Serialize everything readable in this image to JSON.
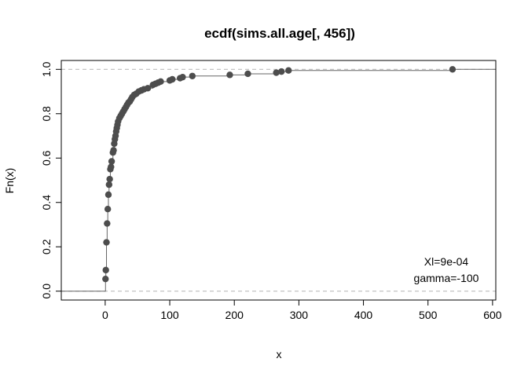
{
  "chart_data": {
    "type": "scatter",
    "title": "ecdf(sims.all.age[, 456])",
    "xlabel": "x",
    "ylabel": "Fn(x)",
    "xlim": [
      -68,
      605
    ],
    "ylim": [
      -0.04,
      1.04
    ],
    "xticks": [
      0,
      100,
      200,
      300,
      400,
      500,
      600
    ],
    "yticks": [
      0.0,
      0.2,
      0.4,
      0.6,
      0.8,
      1.0
    ],
    "xtick_labels": [
      "0",
      "100",
      "200",
      "300",
      "400",
      "500",
      "600"
    ],
    "ytick_labels": [
      "0.0",
      "0.2",
      "0.4",
      "0.6",
      "0.8",
      "1.0"
    ],
    "reference_lines": [
      0,
      1
    ],
    "point_color": "#4d4d4d",
    "annotations": [
      "Xl=9e-04",
      "gamma=-100"
    ],
    "points": [
      [
        0.5,
        0.055
      ],
      [
        1,
        0.095
      ],
      [
        2,
        0.22
      ],
      [
        3,
        0.305
      ],
      [
        4,
        0.37
      ],
      [
        5,
        0.435
      ],
      [
        6,
        0.48
      ],
      [
        7,
        0.505
      ],
      [
        8,
        0.55
      ],
      [
        9,
        0.56
      ],
      [
        10,
        0.585
      ],
      [
        12,
        0.625
      ],
      [
        13,
        0.635
      ],
      [
        14,
        0.665
      ],
      [
        15,
        0.685
      ],
      [
        16,
        0.7
      ],
      [
        17,
        0.72
      ],
      [
        18,
        0.735
      ],
      [
        19,
        0.75
      ],
      [
        20,
        0.765
      ],
      [
        22,
        0.78
      ],
      [
        24,
        0.79
      ],
      [
        26,
        0.8
      ],
      [
        28,
        0.81
      ],
      [
        30,
        0.82
      ],
      [
        32,
        0.83
      ],
      [
        34,
        0.84
      ],
      [
        36,
        0.85
      ],
      [
        38,
        0.855
      ],
      [
        40,
        0.865
      ],
      [
        42,
        0.875
      ],
      [
        45,
        0.885
      ],
      [
        48,
        0.89
      ],
      [
        52,
        0.9
      ],
      [
        56,
        0.905
      ],
      [
        60,
        0.91
      ],
      [
        66,
        0.915
      ],
      [
        74,
        0.93
      ],
      [
        78,
        0.935
      ],
      [
        82,
        0.94
      ],
      [
        86,
        0.945
      ],
      [
        100,
        0.95
      ],
      [
        104,
        0.955
      ],
      [
        116,
        0.96
      ],
      [
        120,
        0.965
      ],
      [
        135,
        0.97
      ],
      [
        193,
        0.975
      ],
      [
        221,
        0.98
      ],
      [
        265,
        0.985
      ],
      [
        273,
        0.99
      ],
      [
        284,
        0.995
      ],
      [
        538,
        1.0
      ]
    ]
  }
}
